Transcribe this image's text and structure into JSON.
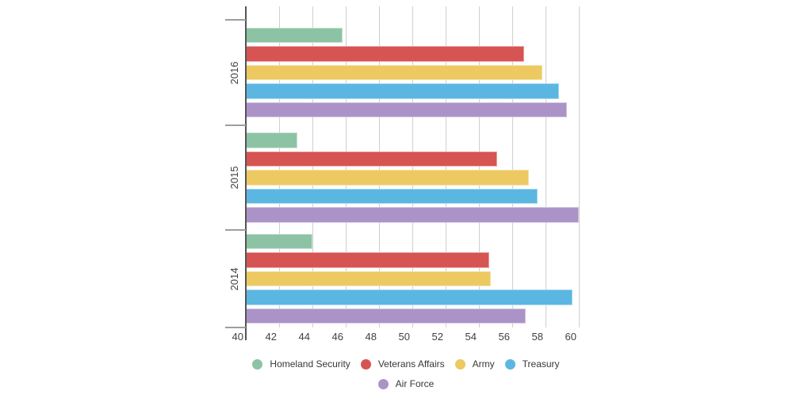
{
  "chart_data": {
    "type": "bar",
    "orientation": "horizontal",
    "title": "",
    "categories": [
      "2016",
      "2015",
      "2014"
    ],
    "series": [
      {
        "name": "Homeland Security",
        "color": "#8cc3a4",
        "values": [
          45.8,
          43.1,
          44.0
        ]
      },
      {
        "name": "Veterans Affairs",
        "color": "#d65452",
        "values": [
          56.7,
          55.1,
          54.6
        ]
      },
      {
        "name": "Army",
        "color": "#edc962",
        "values": [
          57.8,
          57.0,
          54.7
        ]
      },
      {
        "name": "Treasury",
        "color": "#5cb6e2",
        "values": [
          58.8,
          57.5,
          59.6
        ]
      },
      {
        "name": "Air Force",
        "color": "#ac93c7",
        "values": [
          59.3,
          60.0,
          56.8
        ]
      }
    ],
    "xlim": [
      40,
      60
    ],
    "x_ticks": [
      "40",
      "42",
      "44",
      "46",
      "48",
      "50",
      "52",
      "54",
      "56",
      "58",
      "60"
    ],
    "ylabel": "",
    "xlabel": "",
    "grid": true,
    "legend_position": "bottom",
    "legend_rows": [
      [
        0,
        1,
        2,
        3
      ],
      [
        4
      ]
    ]
  },
  "style": {
    "grid_color": "#cfcfcf",
    "axis_color": "#545454",
    "tick_color": "#9e9e9e",
    "text_color": "#424242",
    "background": "#ffffff"
  }
}
